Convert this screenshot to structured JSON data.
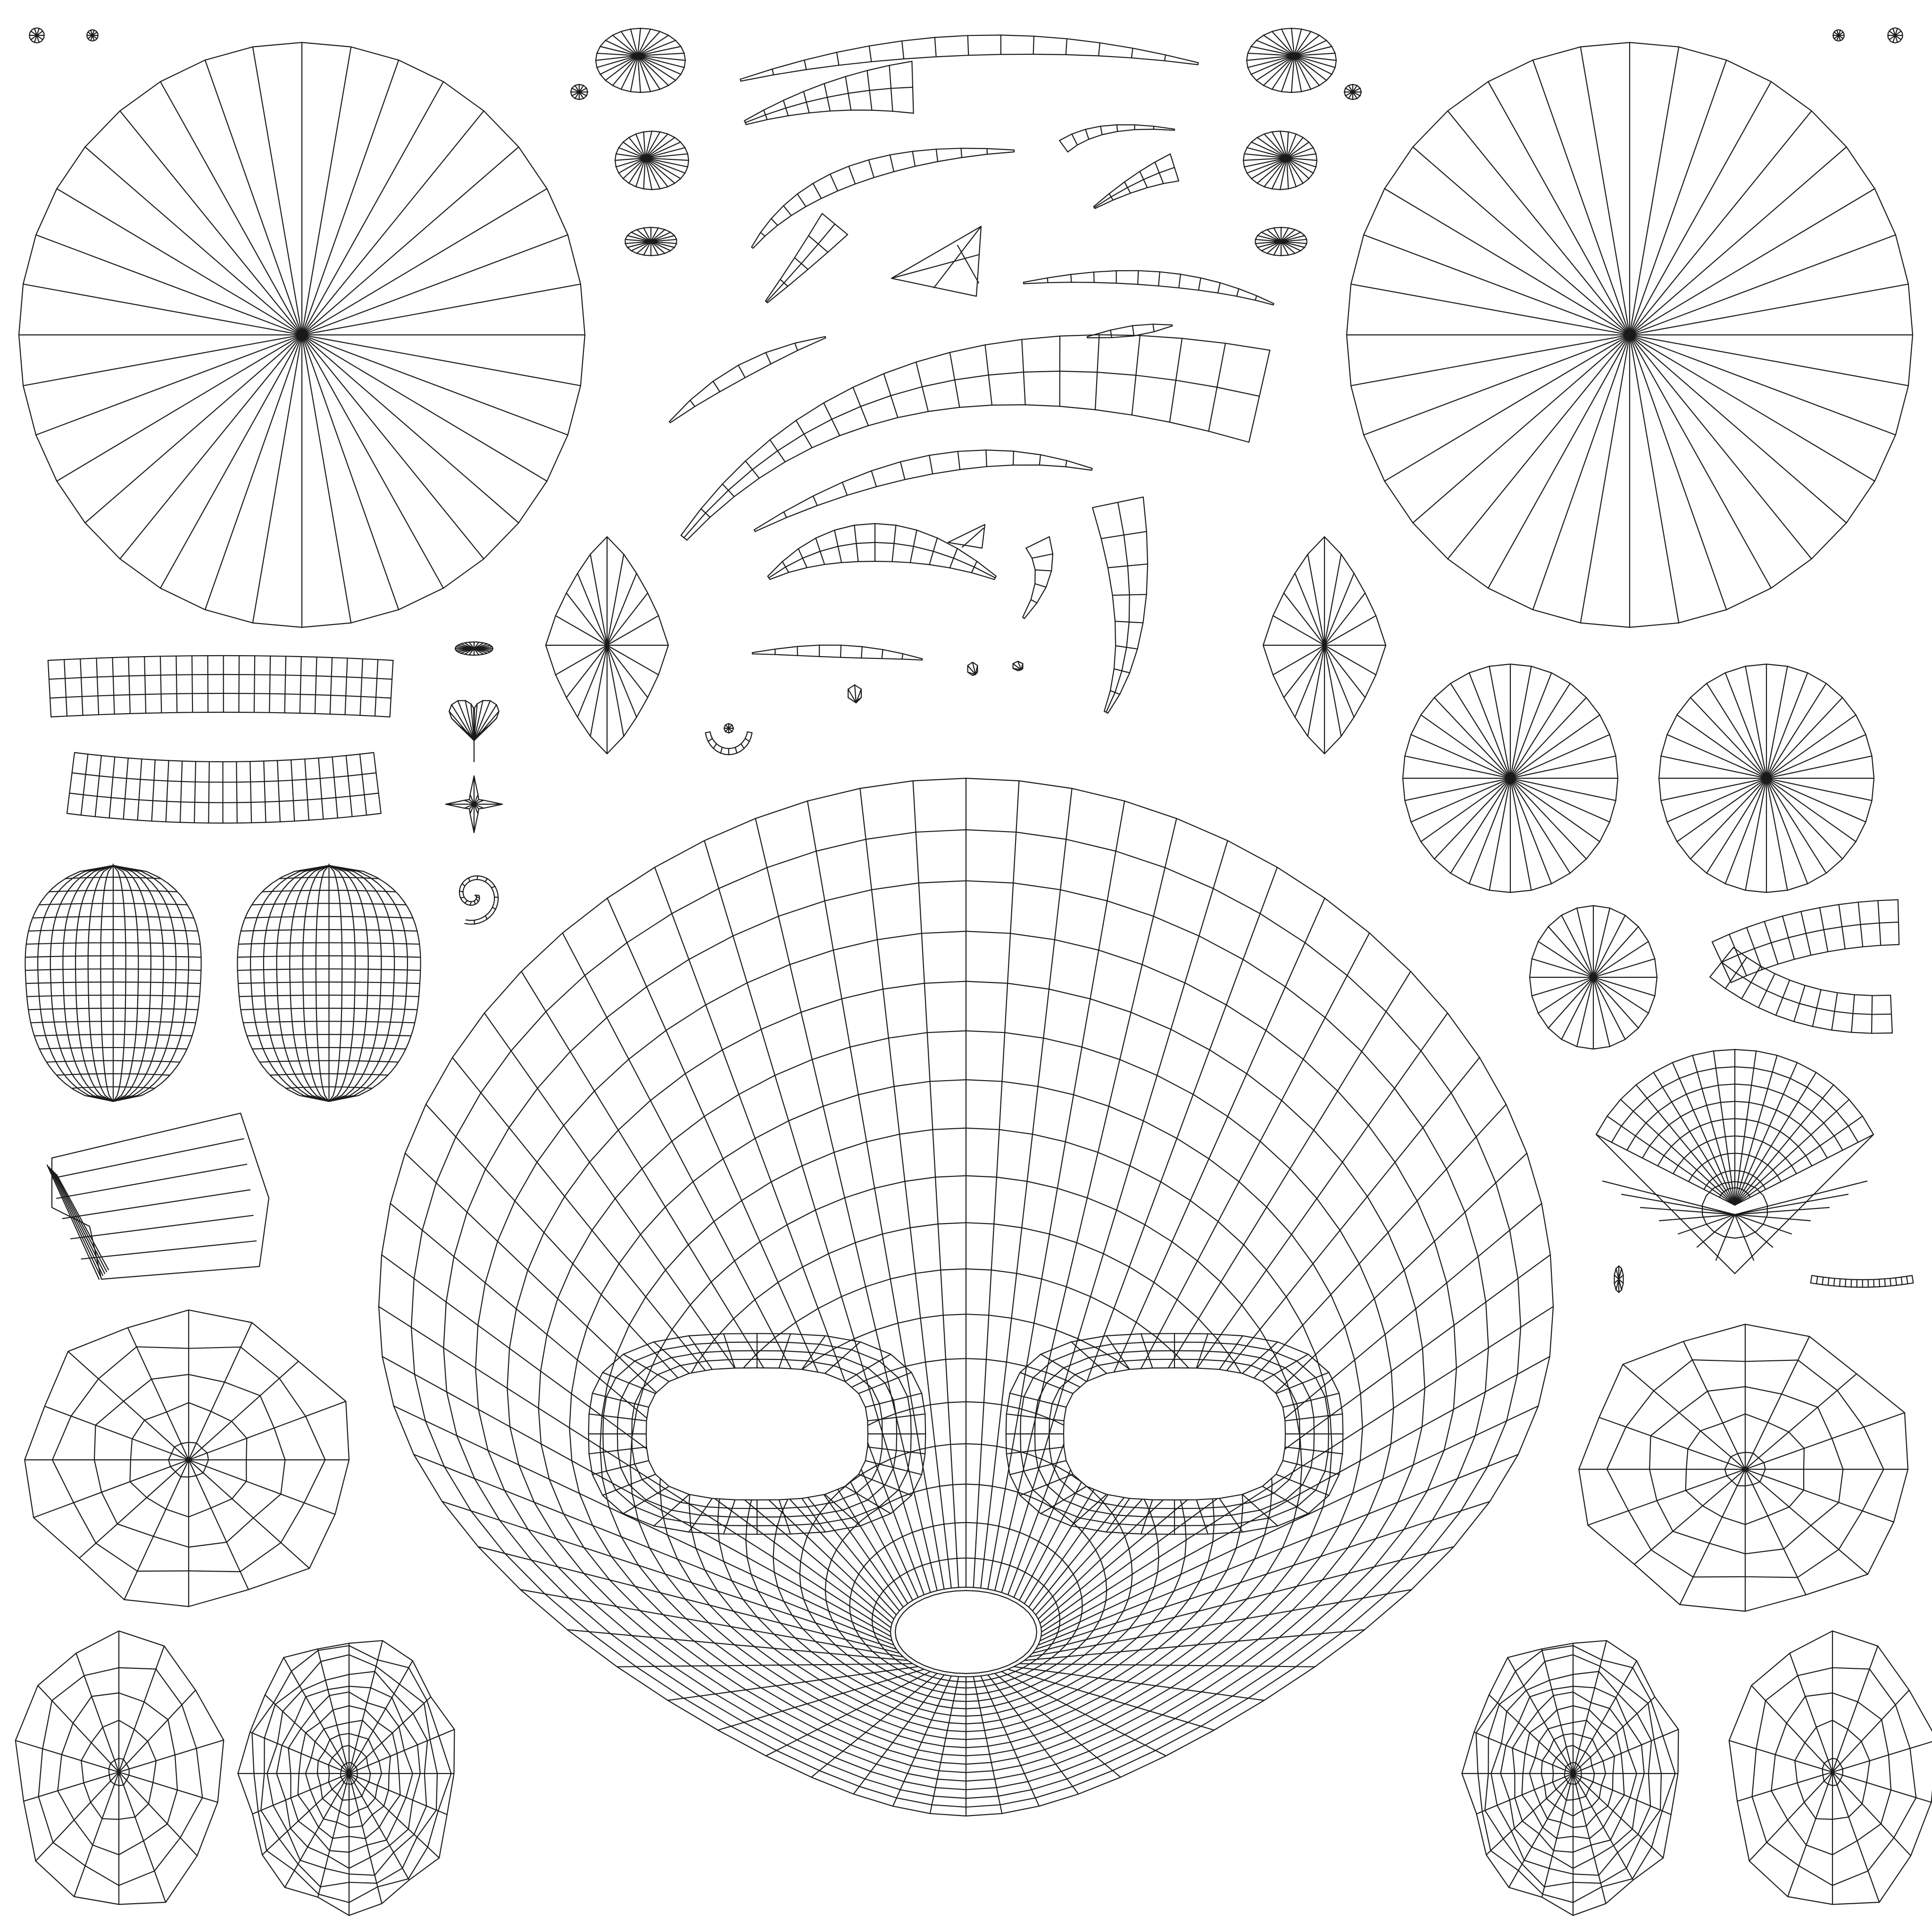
{
  "canvas": {
    "background": "#ffffff",
    "line_color": "#1a1a1a"
  },
  "islands": [
    {
      "name": "uv-island-large-fan-left",
      "kind": "fan",
      "rings": 1,
      "spokes": 36
    },
    {
      "name": "uv-island-large-fan-right",
      "kind": "fan",
      "rings": 1,
      "spokes": 36
    },
    {
      "name": "uv-island-face-main",
      "kind": "grid-face",
      "holes": 3
    },
    {
      "name": "uv-island-fan-mid-right-a",
      "kind": "fan",
      "rings": 1,
      "spokes": 32
    },
    {
      "name": "uv-island-fan-mid-right-b",
      "kind": "fan",
      "rings": 1,
      "spokes": 32
    },
    {
      "name": "uv-island-fan-small-right",
      "kind": "fan",
      "rings": 1,
      "spokes": 24
    },
    {
      "name": "uv-island-diamond-left",
      "kind": "diamond-fan",
      "spokes": 20
    },
    {
      "name": "uv-island-diamond-right",
      "kind": "diamond-fan",
      "spokes": 20
    },
    {
      "name": "uv-island-eyeball-left",
      "kind": "sphere-grid",
      "rows": 18,
      "cols": 14
    },
    {
      "name": "uv-island-eyeball-right",
      "kind": "sphere-grid",
      "rows": 18,
      "cols": 14
    },
    {
      "name": "uv-island-teeth-upper",
      "kind": "strip",
      "segments": 22
    },
    {
      "name": "uv-island-teeth-lower",
      "kind": "strip",
      "segments": 22
    },
    {
      "name": "uv-island-tongue",
      "kind": "block",
      "segments": 6
    },
    {
      "name": "uv-island-ring-left-1",
      "kind": "radial-rings",
      "rings": 4,
      "spokes": 16
    },
    {
      "name": "uv-island-ring-left-2",
      "kind": "radial-rings",
      "rings": 4,
      "spokes": 14
    },
    {
      "name": "uv-island-ring-left-3",
      "kind": "radial-rings",
      "rings": 10,
      "spokes": 20
    },
    {
      "name": "uv-island-ring-right-1",
      "kind": "radial-rings",
      "rings": 4,
      "spokes": 16
    },
    {
      "name": "uv-island-ring-right-2",
      "kind": "radial-rings",
      "rings": 10,
      "spokes": 20
    },
    {
      "name": "uv-island-ring-right-3",
      "kind": "radial-rings",
      "rings": 4,
      "spokes": 14
    },
    {
      "name": "uv-island-fan-wedge-right",
      "kind": "wedge-grid",
      "rings": 9,
      "spokes": 16
    },
    {
      "name": "uv-island-tube-bent-right",
      "kind": "bent-tube",
      "segments": 14
    },
    {
      "name": "uv-island-strips-top",
      "kind": "curved-strips",
      "count": 14
    },
    {
      "name": "uv-island-small-parts",
      "kind": "mixed",
      "count": 20
    }
  ]
}
